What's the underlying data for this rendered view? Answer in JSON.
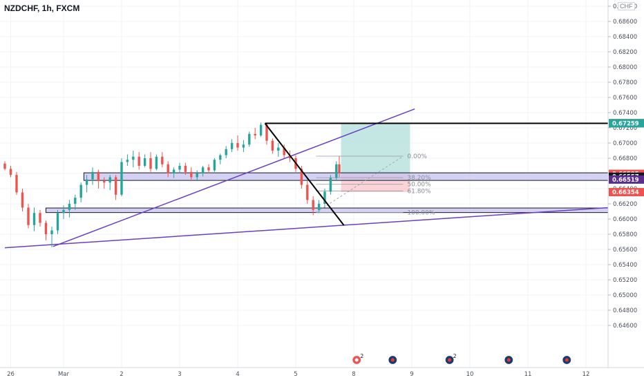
{
  "header": {
    "symbol": "NZDCHF, 1h, FXCM",
    "currency": "CHF"
  },
  "chart_data": {
    "type": "candlestick",
    "title": "NZDCHF, 1h, FXCM",
    "ylim": [
      0.6456,
      0.6896
    ],
    "y_ticks": [
      "0.68800",
      "0.68600",
      "0.68400",
      "0.68200",
      "0.68000",
      "0.67800",
      "0.67600",
      "0.67400",
      "0.67200",
      "0.67000",
      "0.66800",
      "0.66600",
      "0.66400",
      "0.66200",
      "0.66000",
      "0.65800",
      "0.65600",
      "0.65400",
      "0.65200",
      "0.65000",
      "0.64800",
      "0.64600"
    ],
    "x_ticks": [
      {
        "label": "26",
        "x": 0.1
      },
      {
        "label": "Mar",
        "x": 1
      },
      {
        "label": "2",
        "x": 2
      },
      {
        "label": "3",
        "x": 3
      },
      {
        "label": "4",
        "x": 4
      },
      {
        "label": "5",
        "x": 5
      },
      {
        "label": "8",
        "x": 6
      },
      {
        "label": "9",
        "x": 7
      },
      {
        "label": "10",
        "x": 8
      },
      {
        "label": "11",
        "x": 9
      },
      {
        "label": "12",
        "x": 10
      }
    ],
    "price_labels": [
      {
        "text": "0.67261",
        "value": 0.67261,
        "color": "#131722"
      },
      {
        "text": "0.67259",
        "value": 0.67259,
        "color": "#26a69a"
      },
      {
        "text": "0.66595",
        "value": 0.66595,
        "color": "#ef5350"
      },
      {
        "text": "0.66557",
        "value": 0.66557,
        "color": "#131722"
      },
      {
        "text": "0.66519",
        "value": 0.66519,
        "color": "#5b2d8e"
      },
      {
        "text": "0.66354",
        "value": 0.66354,
        "color": "#ef5350"
      }
    ],
    "fib_levels": [
      {
        "label": "0.00%",
        "value": 0.66827
      },
      {
        "label": "38.20%",
        "value": 0.66544
      },
      {
        "label": "50.00%",
        "value": 0.66457
      },
      {
        "label": "61.80%",
        "value": 0.6637
      },
      {
        "label": "100.00%",
        "value": 0.66087
      }
    ],
    "zones": [
      {
        "x1": 1.35,
        "x2": 10.5,
        "ylow": 0.66508,
        "yhigh": 0.66608
      },
      {
        "x1": 0.7,
        "x2": 10.5,
        "ylow": 0.66085,
        "yhigh": 0.66145
      }
    ],
    "trendlines": [
      {
        "x1": 0,
        "y1": 0.65622,
        "x2": 10.5,
        "y2": 0.66156,
        "color": "#6a3fc4"
      },
      {
        "x1": 0.82,
        "y1": 0.65638,
        "x2": 7.05,
        "y2": 0.67448,
        "color": "#6a3fc4"
      }
    ],
    "black_lines": [
      {
        "x1": 4.47,
        "y1": 0.67259,
        "x2": 10.5,
        "y2": 0.67259
      },
      {
        "x1": 4.47,
        "y1": 0.67259,
        "x2": 5.83,
        "y2": 0.65917
      }
    ],
    "position": {
      "x1": 5.78,
      "x2": 6.97,
      "entry": 0.66595,
      "target": 0.67259,
      "stop": 0.66354
    },
    "series": [
      {
        "name": "NZDCHF",
        "ohlc": [
          [
            0.0,
            0.6673,
            0.6676,
            0.6664,
            0.6666
          ],
          [
            0.1,
            0.6666,
            0.667,
            0.6655,
            0.6658
          ],
          [
            0.2,
            0.6658,
            0.6662,
            0.6632,
            0.6635
          ],
          [
            0.3,
            0.6635,
            0.664,
            0.661,
            0.6615
          ],
          [
            0.4,
            0.6615,
            0.662,
            0.6588,
            0.6592
          ],
          [
            0.5,
            0.6592,
            0.6615,
            0.6584,
            0.6608
          ],
          [
            0.6,
            0.6608,
            0.6612,
            0.659,
            0.6595
          ],
          [
            0.7,
            0.6595,
            0.6598,
            0.6572,
            0.658
          ],
          [
            0.8,
            0.658,
            0.659,
            0.6563,
            0.6585
          ],
          [
            0.9,
            0.6585,
            0.6612,
            0.658,
            0.6608
          ],
          [
            1.0,
            0.6608,
            0.6618,
            0.66,
            0.6612
          ],
          [
            1.1,
            0.6612,
            0.6625,
            0.6602,
            0.662
          ],
          [
            1.2,
            0.662,
            0.6632,
            0.6612,
            0.6628
          ],
          [
            1.3,
            0.6628,
            0.6648,
            0.6622,
            0.6645
          ],
          [
            1.4,
            0.6645,
            0.6658,
            0.6635,
            0.6652
          ],
          [
            1.5,
            0.6652,
            0.6668,
            0.6645,
            0.6662
          ],
          [
            1.6,
            0.6662,
            0.6665,
            0.664,
            0.665
          ],
          [
            1.7,
            0.665,
            0.6655,
            0.664,
            0.6648
          ],
          [
            1.8,
            0.6648,
            0.6658,
            0.6638,
            0.6655
          ],
          [
            1.9,
            0.6655,
            0.6658,
            0.6625,
            0.6632
          ],
          [
            2.0,
            0.6632,
            0.668,
            0.663,
            0.6675
          ],
          [
            2.1,
            0.6675,
            0.6685,
            0.667,
            0.6678
          ],
          [
            2.2,
            0.6678,
            0.669,
            0.6668,
            0.6682
          ],
          [
            2.3,
            0.6682,
            0.6688,
            0.6665,
            0.667
          ],
          [
            2.4,
            0.667,
            0.6685,
            0.6668,
            0.668
          ],
          [
            2.5,
            0.668,
            0.6688,
            0.6662,
            0.6666
          ],
          [
            2.6,
            0.6666,
            0.6685,
            0.6664,
            0.6682
          ],
          [
            2.7,
            0.6682,
            0.6688,
            0.6668,
            0.6672
          ],
          [
            2.8,
            0.6672,
            0.6676,
            0.6655,
            0.666
          ],
          [
            2.9,
            0.666,
            0.6668,
            0.6654,
            0.6665
          ],
          [
            3.0,
            0.6665,
            0.6674,
            0.666,
            0.667
          ],
          [
            3.1,
            0.667,
            0.6674,
            0.6658,
            0.6662
          ],
          [
            3.2,
            0.6662,
            0.6668,
            0.6652,
            0.6655
          ],
          [
            3.3,
            0.6655,
            0.6664,
            0.665,
            0.666
          ],
          [
            3.4,
            0.666,
            0.667,
            0.6656,
            0.6668
          ],
          [
            3.5,
            0.6668,
            0.6672,
            0.666,
            0.6664
          ],
          [
            3.6,
            0.6664,
            0.668,
            0.6662,
            0.6678
          ],
          [
            3.7,
            0.6678,
            0.6686,
            0.6672,
            0.6684
          ],
          [
            3.8,
            0.6684,
            0.6696,
            0.668,
            0.6692
          ],
          [
            3.9,
            0.6692,
            0.6705,
            0.6688,
            0.67
          ],
          [
            4.0,
            0.67,
            0.671,
            0.669,
            0.6694
          ],
          [
            4.1,
            0.6694,
            0.6704,
            0.6688,
            0.6698
          ],
          [
            4.2,
            0.6698,
            0.6715,
            0.6695,
            0.6712
          ],
          [
            4.3,
            0.6712,
            0.672,
            0.6705,
            0.671
          ],
          [
            4.4,
            0.671,
            0.6727,
            0.6708,
            0.6724
          ],
          [
            4.5,
            0.6724,
            0.6726,
            0.6698,
            0.6703
          ],
          [
            4.6,
            0.6703,
            0.6706,
            0.6686,
            0.669
          ],
          [
            4.7,
            0.669,
            0.67,
            0.6682,
            0.6694
          ],
          [
            4.8,
            0.6694,
            0.6698,
            0.668,
            0.6684
          ],
          [
            4.9,
            0.6684,
            0.669,
            0.6675,
            0.668
          ],
          [
            5.0,
            0.668,
            0.6684,
            0.6662,
            0.6666
          ],
          [
            5.1,
            0.6666,
            0.667,
            0.664,
            0.6645
          ],
          [
            5.2,
            0.6645,
            0.665,
            0.662,
            0.6625
          ],
          [
            5.3,
            0.6625,
            0.663,
            0.6605,
            0.6612
          ],
          [
            5.4,
            0.6612,
            0.6625,
            0.6608,
            0.662
          ],
          [
            5.5,
            0.662,
            0.664,
            0.6615,
            0.6636
          ],
          [
            5.6,
            0.6636,
            0.6658,
            0.6632,
            0.6654
          ],
          [
            5.7,
            0.6654,
            0.6676,
            0.665,
            0.6672
          ],
          [
            5.75,
            0.6672,
            0.6683,
            0.6655,
            0.666
          ]
        ]
      }
    ],
    "event_markers": [
      {
        "x": 6.05,
        "kind": "alert",
        "count": "2"
      },
      {
        "x": 6.67,
        "kind": "flag",
        "count": ""
      },
      {
        "x": 7.65,
        "kind": "flag",
        "count": "2"
      },
      {
        "x": 8.67,
        "kind": "flag",
        "count": ""
      },
      {
        "x": 9.67,
        "kind": "flag",
        "count": ""
      }
    ],
    "colors": {
      "up": "#26a69a",
      "down": "#ef5350",
      "zone_fill": "#c7c2ee",
      "zone_stroke": "#131722",
      "purple": "#6a3fc4",
      "profit": "#b2dfdb",
      "loss": "#f8c6c8"
    }
  }
}
